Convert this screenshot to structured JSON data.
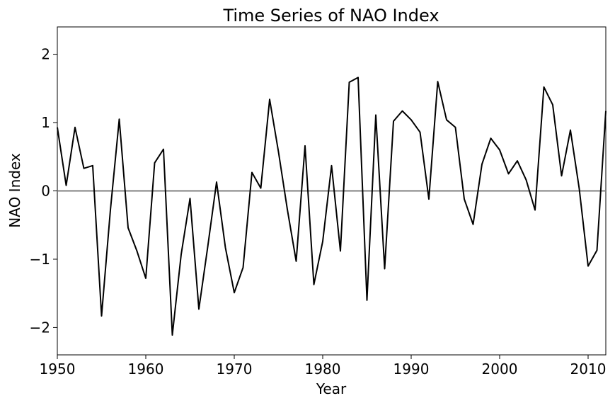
{
  "chart_data": {
    "type": "line",
    "title": "Time Series of NAO Index",
    "xlabel": "Year",
    "ylabel": "NAO Index",
    "xlim": [
      1950,
      2012
    ],
    "ylim": [
      -2.4,
      2.4
    ],
    "xticks": [
      1950,
      1960,
      1970,
      1980,
      1990,
      2000,
      2010
    ],
    "xtick_labels": [
      "1950",
      "1960",
      "1970",
      "1980",
      "1990",
      "2000",
      "2010"
    ],
    "yticks": [
      -2,
      -1,
      0,
      1,
      2
    ],
    "ytick_labels": [
      "−2",
      "−1",
      "0",
      "1",
      "2"
    ],
    "grid": false,
    "reference_line": {
      "y": 0,
      "color": "#808080"
    },
    "series": [
      {
        "color": "#000000",
        "x": [
          1950,
          1951,
          1952,
          1953,
          1954,
          1955,
          1956,
          1957,
          1958,
          1959,
          1960,
          1961,
          1962,
          1963,
          1964,
          1965,
          1966,
          1967,
          1968,
          1969,
          1970,
          1971,
          1972,
          1973,
          1974,
          1975,
          1976,
          1977,
          1978,
          1979,
          1980,
          1981,
          1982,
          1983,
          1984,
          1985,
          1986,
          1987,
          1988,
          1989,
          1990,
          1991,
          1992,
          1993,
          1994,
          1995,
          1996,
          1997,
          1998,
          1999,
          2000,
          2001,
          2002,
          2003,
          2004,
          2005,
          2006,
          2007,
          2008,
          2009,
          2010,
          2011,
          2012
        ],
        "y": [
          0.93,
          0.08,
          0.93,
          0.33,
          0.37,
          -1.83,
          -0.28,
          1.05,
          -0.54,
          -0.88,
          -1.28,
          0.41,
          0.61,
          -2.11,
          -0.93,
          -0.11,
          -1.73,
          -0.82,
          0.13,
          -0.83,
          -1.49,
          -1.12,
          0.27,
          0.04,
          1.34,
          0.57,
          -0.27,
          -1.03,
          0.66,
          -1.37,
          -0.74,
          0.37,
          -0.88,
          1.59,
          1.66,
          -1.6,
          1.11,
          -1.14,
          1.02,
          1.17,
          1.04,
          0.86,
          -0.12,
          1.6,
          1.04,
          0.93,
          -0.12,
          -0.49,
          0.39,
          0.77,
          0.6,
          0.25,
          0.44,
          0.16,
          -0.28,
          1.52,
          1.26,
          0.22,
          0.89,
          0.03,
          -1.1,
          -0.87,
          1.17
        ]
      }
    ]
  }
}
